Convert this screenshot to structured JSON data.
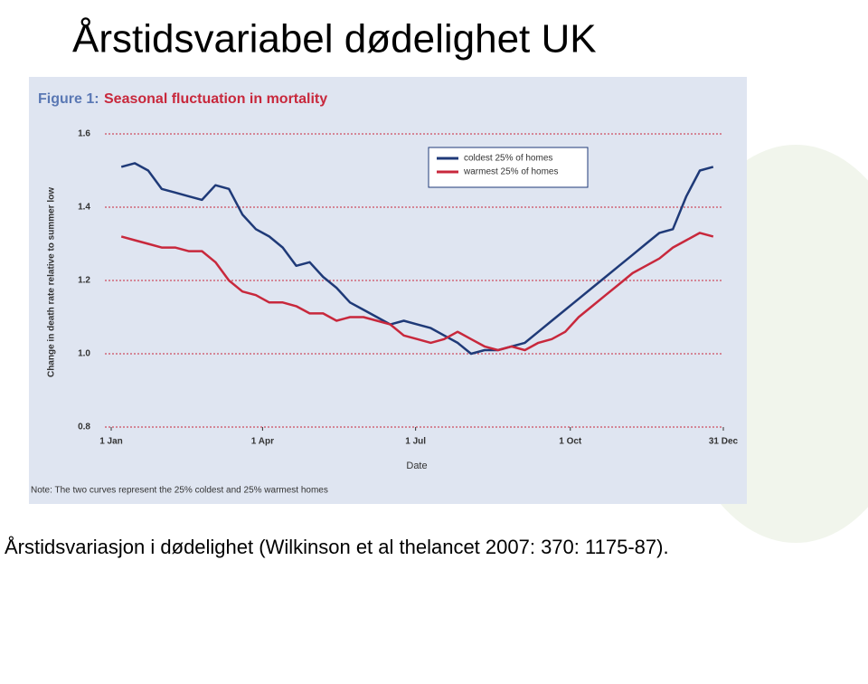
{
  "slide_title": "Årstidsvariabel dødelighet UK",
  "caption": "Årstidsvariasjon i dødelighet (Wilkinson et al thelancet 2007: 370: 1175-87).",
  "chart_data": {
    "type": "line",
    "figure_label": "Figure 1:",
    "title": "Seasonal fluctuation in mortality",
    "y_label": "Change in death rate relative to summer low",
    "x_label": "Date",
    "note": "Note: The two curves represent the 25% coldest and 25% warmest homes",
    "legend": "upper right",
    "grid": true,
    "xlim": [
      1,
      365
    ],
    "xticks": [
      {
        "value": 1,
        "label": "1 Jan"
      },
      {
        "value": 91,
        "label": "1 Apr"
      },
      {
        "value": 182,
        "label": "1 Jul"
      },
      {
        "value": 274,
        "label": "1 Oct"
      },
      {
        "value": 365,
        "label": "31 Dec"
      }
    ],
    "ylim": [
      0.8,
      1.6
    ],
    "yticks": [
      0.8,
      {
        "value": 1,
        "label": "1.0"
      },
      1.2,
      1.4,
      1.6
    ],
    "x": [
      7,
      15,
      23,
      31,
      39,
      47,
      55,
      63,
      71,
      79,
      87,
      95,
      103,
      111,
      119,
      127,
      135,
      143,
      151,
      159,
      167,
      175,
      183,
      191,
      199,
      207,
      215,
      223,
      231,
      239,
      247,
      255,
      263,
      271,
      279,
      287,
      295,
      303,
      311,
      319,
      327,
      335,
      343,
      351,
      359
    ],
    "series": [
      {
        "name": "coldest 25% of homes",
        "color": "#1f3a78",
        "values": [
          1.51,
          1.52,
          1.5,
          1.45,
          1.44,
          1.43,
          1.42,
          1.46,
          1.45,
          1.38,
          1.34,
          1.32,
          1.29,
          1.24,
          1.25,
          1.21,
          1.18,
          1.14,
          1.12,
          1.1,
          1.08,
          1.09,
          1.08,
          1.07,
          1.05,
          1.03,
          1.0,
          1.01,
          1.01,
          1.02,
          1.03,
          1.06,
          1.09,
          1.12,
          1.15,
          1.18,
          1.21,
          1.24,
          1.27,
          1.3,
          1.33,
          1.34,
          1.43,
          1.5,
          1.51
        ]
      },
      {
        "name": "warmest 25% of homes",
        "color": "#c8283c",
        "values": [
          1.32,
          1.31,
          1.3,
          1.29,
          1.29,
          1.28,
          1.28,
          1.25,
          1.2,
          1.17,
          1.16,
          1.14,
          1.14,
          1.13,
          1.11,
          1.11,
          1.09,
          1.1,
          1.1,
          1.09,
          1.08,
          1.05,
          1.04,
          1.03,
          1.04,
          1.06,
          1.04,
          1.02,
          1.01,
          1.02,
          1.01,
          1.03,
          1.04,
          1.06,
          1.1,
          1.13,
          1.16,
          1.19,
          1.22,
          1.24,
          1.26,
          1.29,
          1.31,
          1.33,
          1.32
        ]
      }
    ]
  }
}
